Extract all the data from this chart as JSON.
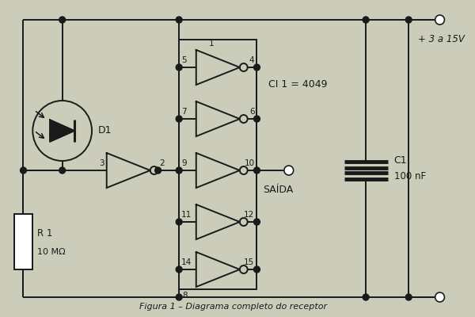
{
  "background_color": "#ccccbb",
  "line_color": "#1a1a1a",
  "title": "Figura 1 – Diagrama completo do receptor",
  "vcc_label": "+ 3 a 15V",
  "ci_label": "CI 1 = 4049",
  "saida_label": "SAÍDA",
  "c1_label": "C1",
  "c1_val": "100 nF",
  "r1_label": "R 1",
  "r1_val": "10 MΩ",
  "d1_label": "D1"
}
